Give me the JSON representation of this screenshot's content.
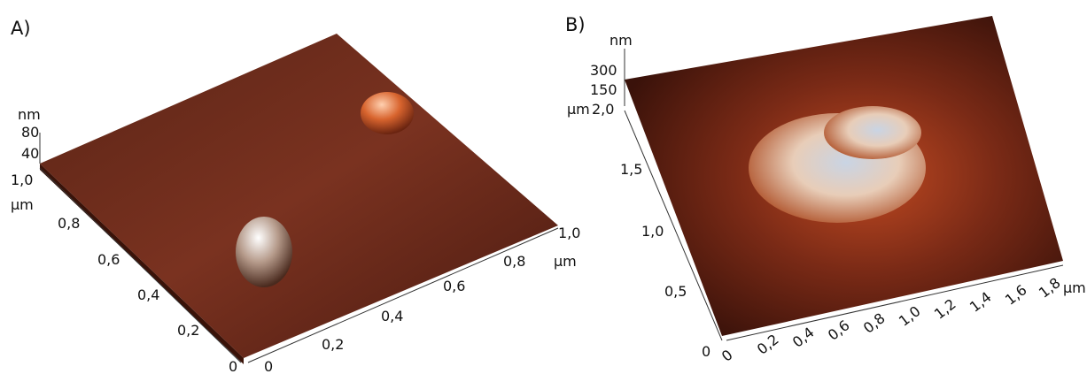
{
  "panels": [
    {
      "label": "A)",
      "z_axis": {
        "unit": "nm",
        "ticks": [
          "80",
          "40"
        ]
      },
      "y_axis": {
        "max": "1,0",
        "unit": "µm",
        "ticks": [
          "0,8",
          "0,6",
          "0,4",
          "0,2",
          "0"
        ]
      },
      "x_axis": {
        "ticks": [
          "0",
          "0,2",
          "0,4",
          "0,6",
          "0,8",
          "1,0"
        ],
        "unit": "µm"
      }
    },
    {
      "label": "B)",
      "z_axis": {
        "unit": "nm",
        "ticks": [
          "300",
          "150"
        ]
      },
      "y_axis": {
        "max": "2,0",
        "unit": "µm",
        "ticks": [
          "1,5",
          "1,0",
          "0,5",
          "0"
        ]
      },
      "x_axis": {
        "ticks": [
          "0",
          "0,2",
          "0,4",
          "0,6",
          "0,8",
          "1,0",
          "1,2",
          "1,4",
          "1,6",
          "1,8"
        ],
        "unit": "µm"
      }
    }
  ]
}
